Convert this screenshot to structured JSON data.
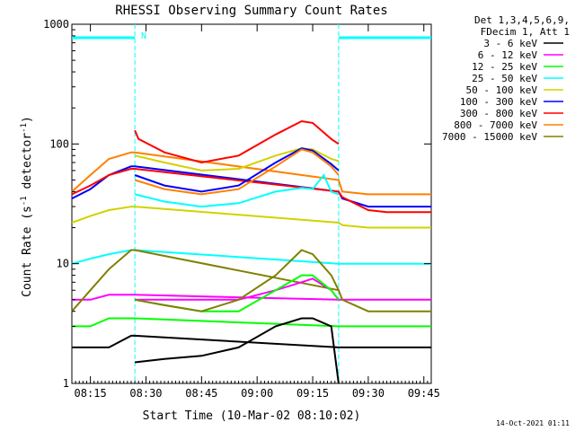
{
  "chart_data": {
    "type": "line",
    "title": "RHESSI Observing Summary Count Rates",
    "xlabel": "Start Time (10-Mar-02 08:10:02)",
    "ylabel_main": "Count Rate (s",
    "ylabel_sup1": "-1",
    "ylabel_mid": " detector",
    "ylabel_sup2": "-1",
    "ylabel_end": ")",
    "yscale": "log",
    "ylim": [
      1,
      1000
    ],
    "xlim_minutes": [
      0,
      97
    ],
    "x_tick_minutes": [
      5,
      20,
      35,
      50,
      65,
      80,
      95
    ],
    "x_tick_labels": [
      "08:15",
      "08:30",
      "08:45",
      "09:00",
      "09:15",
      "09:30",
      "09:45"
    ],
    "y_tick_values": [
      1,
      10,
      100,
      1000
    ],
    "y_tick_labels": [
      "1",
      "10",
      "100",
      "1000"
    ],
    "legend_header": [
      "Det 1,3,4,5,6,9,",
      "FDecim 1, Att 1"
    ],
    "legend_position": "right",
    "flag_label": "N",
    "timestamp": "14-Oct-2021 01:11",
    "night_intervals_minutes": [
      [
        17,
        72
      ]
    ],
    "series": [
      {
        "name": "3 - 6 keV",
        "color": "#000000",
        "x": [
          0,
          10,
          16,
          17,
          72,
          73,
          80,
          85,
          90,
          97
        ],
        "y": [
          2,
          2,
          2.5,
          2.5,
          2,
          2,
          2,
          2,
          2,
          2
        ]
      },
      {
        "name": "6 - 12 keV",
        "color": "#ff00ff",
        "x": [
          0,
          5,
          10,
          16,
          17,
          72,
          73,
          80,
          85,
          90,
          97
        ],
        "y": [
          5,
          5,
          5.5,
          5.5,
          5.5,
          5,
          5,
          5,
          5,
          5,
          5
        ]
      },
      {
        "name": "12 - 25 keV",
        "color": "#00ff00",
        "x": [
          0,
          5,
          10,
          16,
          17,
          72,
          73,
          80,
          85,
          90,
          97
        ],
        "y": [
          3,
          3,
          3.5,
          3.5,
          3.5,
          3,
          3,
          3,
          3,
          3,
          3
        ]
      },
      {
        "name": "25 - 50 keV",
        "color": "#00ffff",
        "x": [
          0,
          5,
          10,
          16,
          17,
          72,
          73,
          80,
          85,
          90,
          97
        ],
        "y": [
          10,
          11,
          12,
          13,
          13,
          10,
          10,
          10,
          10,
          10,
          10
        ]
      },
      {
        "name": "100 - 300 keV",
        "color": "#0000ff",
        "x": [
          0,
          5,
          10,
          16,
          17,
          72,
          73,
          80,
          85,
          90,
          97
        ],
        "y": [
          35,
          42,
          55,
          65,
          65,
          40,
          35,
          30,
          30,
          30,
          30
        ]
      },
      {
        "name": "300 - 800 keV",
        "color": "#ff0000",
        "x": [
          0,
          5,
          10,
          16,
          17,
          72,
          73,
          80,
          85,
          90,
          97
        ],
        "y": [
          38,
          45,
          55,
          62,
          62,
          40,
          36,
          28,
          27,
          27,
          27
        ]
      },
      {
        "name": "800 - 7000 keV",
        "color": "#ff8000",
        "x": [
          0,
          5,
          10,
          16,
          17,
          72,
          73,
          80,
          85,
          90,
          97
        ],
        "y": [
          40,
          55,
          75,
          85,
          85,
          50,
          40,
          38,
          38,
          38,
          38
        ]
      },
      {
        "name": "7000 - 15000 keV",
        "color": "#808000",
        "x": [
          0,
          5,
          10,
          16,
          17,
          72,
          73,
          80,
          85,
          90,
          97
        ],
        "y": [
          4,
          6,
          9,
          13,
          13,
          6,
          5,
          4,
          4,
          4,
          4
        ]
      },
      {
        "name": "50 - 100 keV",
        "color": "#d2d200",
        "x": [
          0,
          5,
          10,
          16,
          17,
          72,
          73,
          80,
          85,
          90,
          97
        ],
        "y": [
          22,
          25,
          28,
          30,
          30,
          22,
          21,
          20,
          20,
          20,
          20
        ]
      }
    ],
    "day_segments": [
      {
        "name": "3 - 6 keV",
        "x": [
          17,
          25,
          35,
          45,
          55,
          62,
          65,
          70,
          72
        ],
        "y": [
          1.5,
          1.6,
          1.7,
          2,
          3,
          3.5,
          3.5,
          3,
          1
        ]
      },
      {
        "name": "6 - 12 keV",
        "x": [
          17,
          25,
          35,
          45,
          55,
          62,
          65,
          70,
          72
        ],
        "y": [
          5,
          5,
          5,
          5,
          6,
          7,
          7.5,
          6,
          5
        ]
      },
      {
        "name": "12 - 25 keV",
        "x": [
          17,
          25,
          35,
          45,
          55,
          62,
          65,
          70,
          72
        ],
        "y": [
          5,
          4.5,
          4,
          4,
          6,
          8,
          8,
          6,
          5
        ]
      },
      {
        "name": "25 - 50 keV",
        "x": [
          17,
          25,
          35,
          45,
          55,
          62,
          65,
          68,
          70,
          72
        ],
        "y": [
          38,
          33,
          30,
          32,
          40,
          43,
          42,
          55,
          40,
          38
        ]
      },
      {
        "name": "50 - 100 keV",
        "x": [
          17,
          25,
          35,
          45,
          55,
          62,
          65,
          70,
          72
        ],
        "y": [
          80,
          70,
          60,
          62,
          80,
          92,
          90,
          75,
          72
        ]
      },
      {
        "name": "100 - 300 keV",
        "x": [
          17,
          25,
          35,
          45,
          55,
          62,
          65,
          70,
          72
        ],
        "y": [
          55,
          45,
          40,
          45,
          70,
          92,
          88,
          68,
          60
        ]
      },
      {
        "name": "300 - 800 keV",
        "x": [
          17,
          18,
          25,
          35,
          45,
          55,
          62,
          65,
          70,
          72
        ],
        "y": [
          130,
          110,
          85,
          70,
          80,
          120,
          155,
          150,
          110,
          100
        ]
      },
      {
        "name": "800 - 7000 keV",
        "x": [
          17,
          25,
          35,
          45,
          55,
          62,
          65,
          70,
          72
        ],
        "y": [
          50,
          42,
          38,
          42,
          65,
          90,
          85,
          65,
          55
        ]
      },
      {
        "name": "7000 - 15000 keV",
        "x": [
          17,
          25,
          35,
          45,
          55,
          62,
          65,
          70,
          72
        ],
        "y": [
          5,
          4.5,
          4,
          5,
          8,
          13,
          12,
          8,
          6
        ]
      }
    ]
  }
}
